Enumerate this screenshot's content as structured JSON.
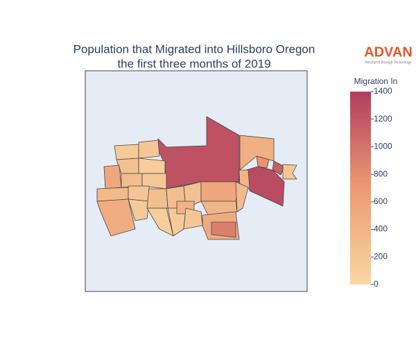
{
  "chart_data": {
    "type": "choropleth",
    "title": [
      "Population that Migrated into Hillsboro Oregon",
      "the first three months of 2019"
    ],
    "colorbar": {
      "title": "Migration In",
      "lim": [
        0,
        1400
      ],
      "ticks": [
        0,
        200,
        400,
        600,
        800,
        1000,
        1200,
        1400
      ]
    },
    "colorscale": [
      "#f8d7a3",
      "#ec9a72",
      "#b13e5f"
    ],
    "map_background": "#e5ecf6",
    "regions": {
      "values": [
        1250,
        450,
        1300,
        750,
        1150,
        200,
        400,
        150,
        200,
        250,
        120,
        550,
        300,
        180,
        350,
        220,
        480,
        160,
        280,
        100,
        300,
        150,
        250,
        420,
        200,
        550,
        380,
        500,
        900,
        320
      ]
    },
    "logo": {
      "name": "ADVAN",
      "tagline": "Research through Technology"
    }
  }
}
